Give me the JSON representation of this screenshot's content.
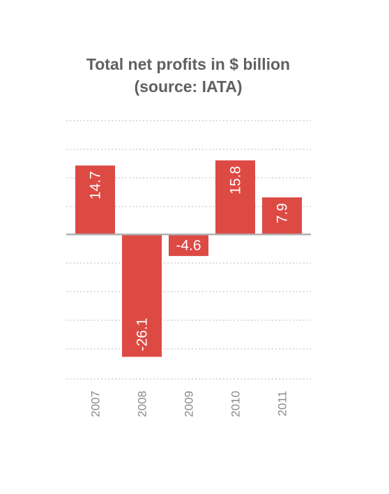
{
  "chart_data": {
    "type": "bar",
    "title_lines": [
      "Total net profits in $ billion",
      "(source: IATA)"
    ],
    "xlabel": "",
    "ylabel": "",
    "categories": [
      "2007",
      "2008",
      "2009",
      "2010",
      "2011"
    ],
    "values": [
      14.7,
      -26.1,
      -4.6,
      15.8,
      7.9
    ],
    "value_labels": [
      "14.7",
      "-26.1",
      "-4.6",
      "15.8",
      "7.9"
    ],
    "ylim": [
      -30,
      25
    ],
    "grid": true,
    "colors": {
      "bar": "#dd4a44",
      "grid": "#b8b8b8",
      "zero_line": "#b0b0b0",
      "title": "#606060",
      "tick": "#8a8a8a"
    }
  }
}
